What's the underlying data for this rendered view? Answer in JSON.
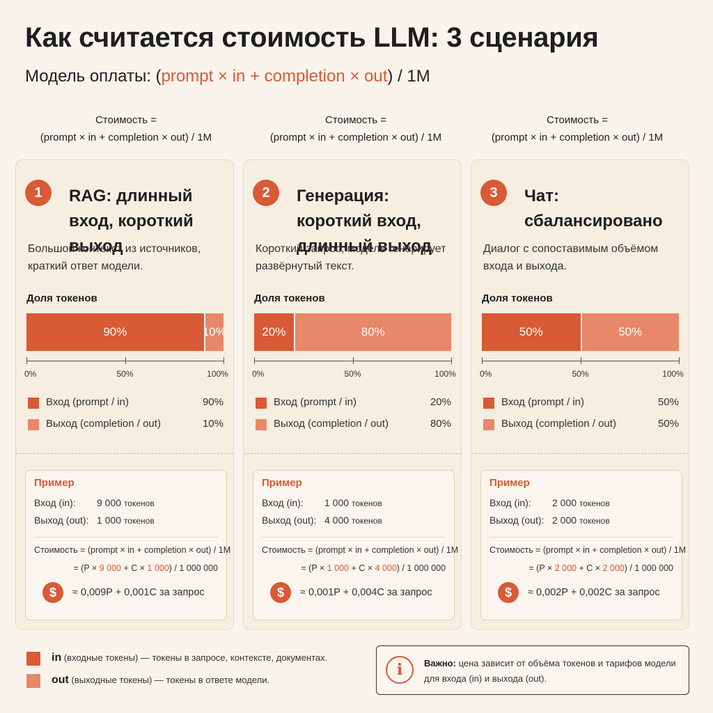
{
  "title": "Как считается стоимость LLM: 3 сценария",
  "subtitle": {
    "prefix": "Модель оплаты: (",
    "highlight": "prompt × in + completion × out",
    "suffix": ") / 1M"
  },
  "colors": {
    "in": "#d85a36",
    "out": "#e8876a",
    "background": "#f8f4ec"
  },
  "share_label": "Доля токенов",
  "axis_ticks": [
    "0%",
    "50%",
    "100%"
  ],
  "example_label": "Пример",
  "input_label": "Вход (in):",
  "output_label": "Выход (out):",
  "tokens_unit": "токенов",
  "formula": "Стоимость = (prompt × in + completion × out) / 1M",
  "scenarios": [
    {
      "header_line1": "Стоимость =",
      "header_line2": "(prompt × in + completion × out) / 1M",
      "number": "1",
      "title": "RAG: длинный вход, короткий выход",
      "description": "Большой контекст из источников, краткий ответ модели.",
      "input_share": 90,
      "output_share": 10,
      "input_share_label": "90%",
      "output_share_label": "10%",
      "legend_in": "Вход (prompt / in)",
      "legend_out": "Выход (completion / out)",
      "example_in": "9 000",
      "example_out": "1 000",
      "calc_prefix": "= (P × ",
      "calc_in": "9 000",
      "calc_mid": " + C × ",
      "calc_out": "1 000",
      "calc_suffix": ") / 1 000 000",
      "result": "≈ 0,009P + 0,001C за запрос"
    },
    {
      "header_line1": "Стоимость =",
      "header_line2": "(prompt × in + completion × out) / 1M",
      "number": "2",
      "title": "Генерация: короткий вход, длинный выход",
      "description": "Короткий запрос, модель генерирует развёрнутый текст.",
      "input_share": 20,
      "output_share": 80,
      "input_share_label": "20%",
      "output_share_label": "80%",
      "legend_in": "Вход (prompt / in)",
      "legend_out": "Выход (completion / out)",
      "example_in": "1 000",
      "example_out": "4 000",
      "calc_prefix": "= (P × ",
      "calc_in": "1 000",
      "calc_mid": " + C × ",
      "calc_out": "4 000",
      "calc_suffix": ") / 1 000 000",
      "result": "≈ 0,001P + 0,004C за запрос"
    },
    {
      "header_line1": "Стоимость =",
      "header_line2": "(prompt × in + completion × out) / 1M",
      "number": "3",
      "title": "Чат: сбалансировано",
      "description": "Диалог с сопоставимым объёмом входа и выхода.",
      "input_share": 50,
      "output_share": 50,
      "input_share_label": "50%",
      "output_share_label": "50%",
      "legend_in": "Вход (prompt / in)",
      "legend_out": "Выход (completion / out)",
      "example_in": "2 000",
      "example_out": "2 000",
      "calc_prefix": "= (P × ",
      "calc_in": "2 000",
      "calc_mid": " + C × ",
      "calc_out": "2 000",
      "calc_suffix": ") / 1 000 000",
      "result": "≈ 0,002P + 0,002C за запрос"
    }
  ],
  "glossary": {
    "in_term": "in",
    "in_text": " (входные токены) — токены в запросе, контексте, документах.",
    "out_term": "out",
    "out_text": " (выходные токены) — токены в ответе модели."
  },
  "note": {
    "bold": "Важно:",
    "text": " цена зависит от объёма токенов и тарифов модели для входа (in) и выхода (out).",
    "icon": "info-icon"
  }
}
